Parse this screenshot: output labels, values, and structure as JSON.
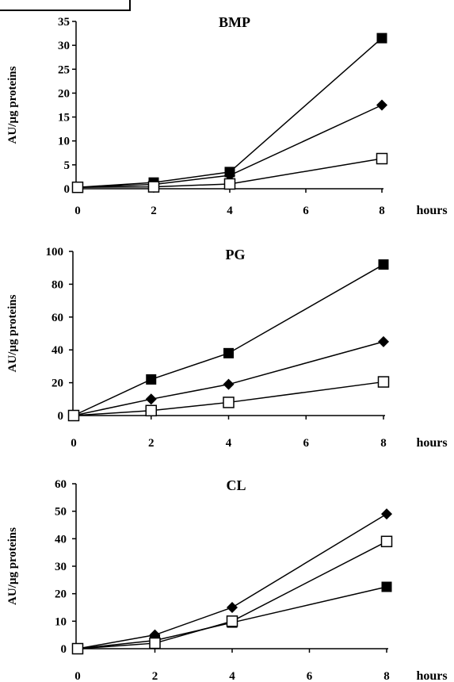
{
  "chart_data": [
    {
      "type": "line",
      "title": "BMP",
      "ylabel": "AU/µg proteins",
      "xunit": "hours",
      "x": [
        0,
        2,
        4,
        8
      ],
      "xticks": [
        0,
        2,
        4,
        6,
        8
      ],
      "ylim": [
        0,
        35
      ],
      "yticks": [
        0,
        5,
        10,
        15,
        20,
        25,
        30,
        35
      ],
      "series": [
        {
          "marker": "square-filled",
          "values": [
            0.3,
            1.3,
            3.5,
            31.5
          ]
        },
        {
          "marker": "diamond-filled",
          "values": [
            0.3,
            0.9,
            2.8,
            17.5
          ]
        },
        {
          "marker": "square-open",
          "values": [
            0.3,
            0.4,
            1.0,
            6.3
          ]
        }
      ]
    },
    {
      "type": "line",
      "title": "PG",
      "ylabel": "AU/µg proteins",
      "xunit": "hours",
      "x": [
        0,
        2,
        4,
        8
      ],
      "xticks": [
        0,
        2,
        4,
        6,
        8
      ],
      "ylim": [
        0,
        100
      ],
      "yticks": [
        0,
        20,
        40,
        60,
        80,
        100
      ],
      "series": [
        {
          "marker": "square-filled",
          "values": [
            0,
            22,
            38,
            92
          ]
        },
        {
          "marker": "diamond-filled",
          "values": [
            0,
            10,
            19,
            45
          ]
        },
        {
          "marker": "square-open",
          "values": [
            0,
            3,
            8,
            20.5
          ]
        }
      ]
    },
    {
      "type": "line",
      "title": "CL",
      "ylabel": "AU/µg proteins",
      "xunit": "hours",
      "x": [
        0,
        2,
        4,
        8
      ],
      "xticks": [
        0,
        2,
        4,
        6,
        8
      ],
      "ylim": [
        0,
        60
      ],
      "yticks": [
        0,
        10,
        20,
        30,
        40,
        50,
        60
      ],
      "series": [
        {
          "marker": "square-filled",
          "values": [
            0,
            3,
            9.5,
            22.5
          ]
        },
        {
          "marker": "diamond-filled",
          "values": [
            0,
            5,
            15,
            49
          ]
        },
        {
          "marker": "square-open",
          "values": [
            0,
            2,
            10,
            39
          ]
        }
      ]
    }
  ]
}
